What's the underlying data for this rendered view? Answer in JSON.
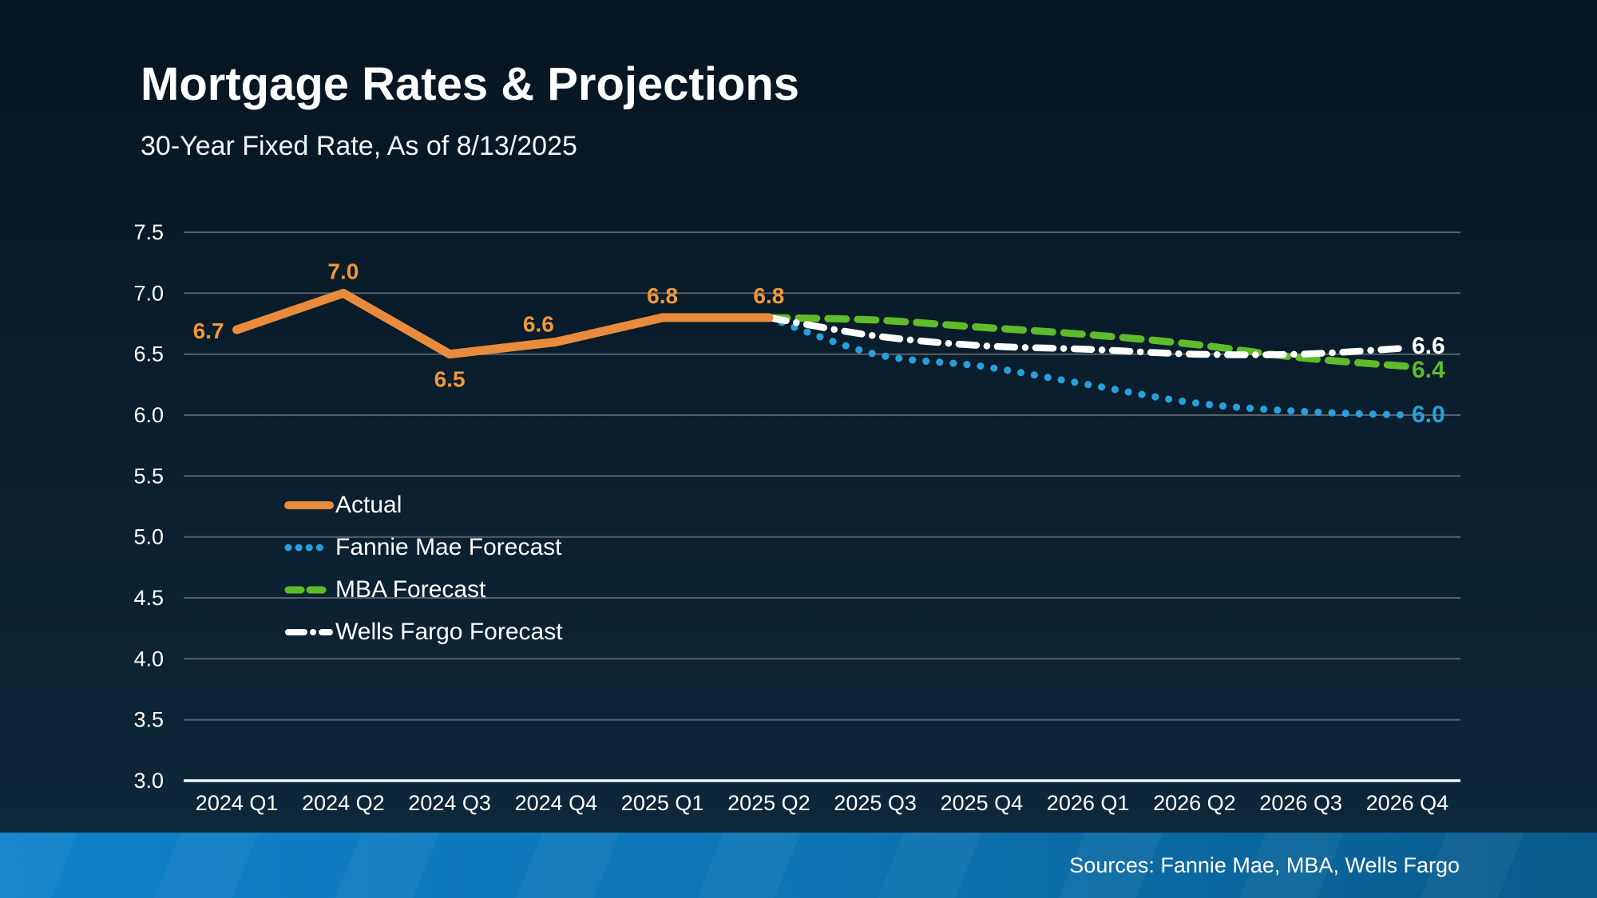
{
  "page": {
    "title": "Mortgage Rates & Projections",
    "subtitle": "30-Year Fixed Rate, As of 8/13/2025"
  },
  "footer": {
    "sources": "Sources: Fannie Mae, MBA, Wells Fargo"
  },
  "colors": {
    "background": "#0A1E2D",
    "actual": "#E98B3C",
    "fannie_mae": "#27A0DC",
    "mba": "#5EBC2B",
    "wells_fargo": "#FFFFFF",
    "value_label": "#F09838",
    "gridline": "#58616B",
    "axis_line": "#F5F7F8",
    "tick_text": "#FFFFFF",
    "footer_bar_left": "#0F82C8",
    "footer_bar_right": "#0A5A8C"
  },
  "chart_data": {
    "type": "line",
    "title": "Mortgage Rates & Projections",
    "subtitle": "30-Year Fixed Rate, As of 8/13/2025",
    "xlabel": "",
    "ylabel": "",
    "ylim": [
      3.0,
      7.5
    ],
    "y_ticks": [
      7.5,
      7.0,
      6.5,
      6.0,
      5.5,
      5.0,
      4.5,
      4.0,
      3.5,
      3.0
    ],
    "grid": true,
    "legend_position": "inside-left",
    "categories": [
      "2024 Q1",
      "2024 Q2",
      "2024 Q3",
      "2024 Q4",
      "2025 Q1",
      "2025 Q2",
      "2025 Q3",
      "2025 Q4",
      "2026 Q1",
      "2026 Q2",
      "2026 Q3",
      "2026 Q4"
    ],
    "series": [
      {
        "name": "Actual",
        "color": "#E98B3C",
        "style": "solid",
        "smooth": false,
        "start_index": 0,
        "values": [
          6.7,
          7.0,
          6.5,
          6.6,
          6.8,
          6.8
        ],
        "point_labels": [
          {
            "text": "6.7",
            "pos": "left"
          },
          {
            "text": "7.0",
            "pos": "above"
          },
          {
            "text": "6.5",
            "pos": "below"
          },
          {
            "text": "6.6",
            "pos": "above-left"
          },
          {
            "text": "6.8",
            "pos": "above"
          },
          {
            "text": "6.8",
            "pos": "above"
          }
        ],
        "end_label": ""
      },
      {
        "name": "Fannie Mae Forecast",
        "color": "#27A0DC",
        "style": "dotted",
        "smooth": true,
        "start_index": 5,
        "values": [
          6.8,
          6.5,
          6.4,
          6.25,
          6.1,
          6.03,
          6.0
        ],
        "point_labels": [],
        "end_label": "6.0"
      },
      {
        "name": "MBA Forecast",
        "color": "#5EBC2B",
        "style": "dashed",
        "smooth": true,
        "start_index": 5,
        "values": [
          6.8,
          6.78,
          6.72,
          6.66,
          6.58,
          6.47,
          6.4
        ],
        "point_labels": [],
        "end_label": "6.4"
      },
      {
        "name": "Wells Fargo Forecast",
        "color": "#FFFFFF",
        "style": "dashdot",
        "smooth": true,
        "start_index": 5,
        "values": [
          6.8,
          6.65,
          6.57,
          6.54,
          6.5,
          6.5,
          6.55
        ],
        "point_labels": [],
        "end_label": "6.6"
      }
    ]
  }
}
